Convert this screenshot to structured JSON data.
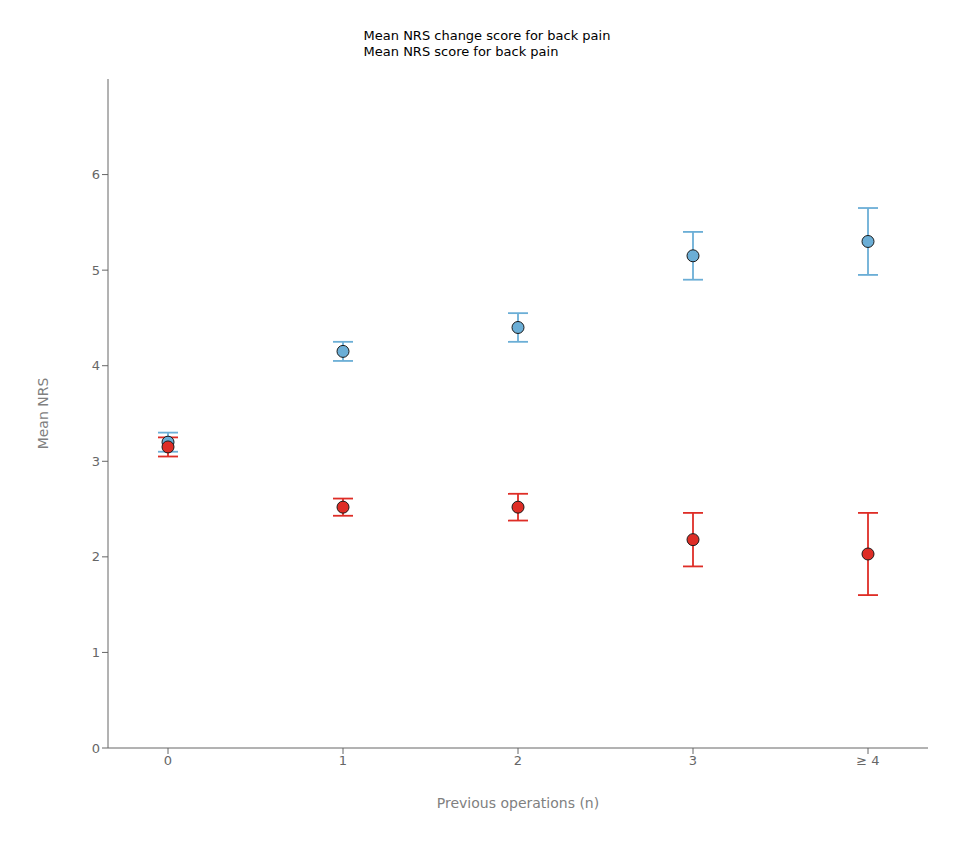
{
  "chart_data": {
    "type": "scatter",
    "xlabel": "Previous operations (n)",
    "ylabel": "Mean NRS",
    "categories": [
      "0",
      "1",
      "2",
      "3",
      "≥ 4"
    ],
    "series": [
      {
        "name": "Mean NRS score for back pain",
        "color": "#6baed6",
        "values": [
          3.2,
          4.15,
          4.4,
          5.15,
          5.3
        ],
        "ci_lower": [
          3.1,
          4.05,
          4.25,
          4.9,
          4.95
        ],
        "ci_upper": [
          3.3,
          4.25,
          4.55,
          5.4,
          5.65
        ]
      },
      {
        "name": "Mean NRS change score for back pain",
        "color": "#de2d26",
        "values": [
          3.15,
          2.52,
          2.52,
          2.18,
          2.03
        ],
        "ci_lower": [
          3.05,
          2.43,
          2.38,
          1.9,
          1.6
        ],
        "ci_upper": [
          3.25,
          2.61,
          2.66,
          2.46,
          2.46
        ]
      }
    ],
    "ylim": [
      0,
      7
    ],
    "yticks": [
      0,
      1,
      2,
      3,
      4,
      5,
      6
    ],
    "grid": false,
    "legend": "top"
  }
}
